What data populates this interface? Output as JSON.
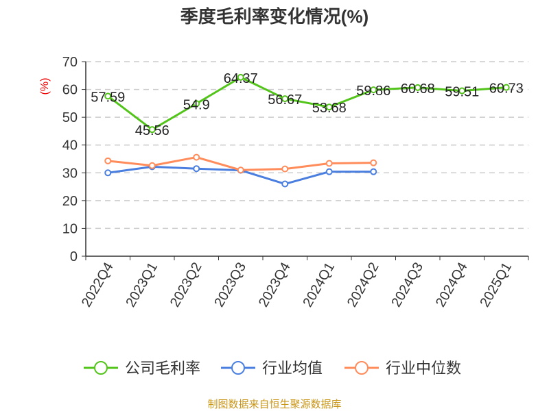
{
  "chart_data": {
    "type": "line",
    "title": "季度毛利率变化情况(%)",
    "ylabel": "(%)",
    "ylim": [
      0,
      70
    ],
    "yticks": [
      0,
      10,
      20,
      30,
      40,
      50,
      60,
      70
    ],
    "grid": true,
    "legend_position": "bottom",
    "categories": [
      "2022Q4",
      "2023Q1",
      "2023Q2",
      "2023Q3",
      "2023Q4",
      "2024Q1",
      "2024Q2",
      "2024Q3",
      "2024Q4",
      "2025Q1"
    ],
    "series": [
      {
        "name": "公司毛利率",
        "color": "#52c41a",
        "values": [
          57.59,
          45.56,
          54.9,
          64.37,
          56.67,
          53.68,
          59.86,
          60.68,
          59.51,
          60.73
        ],
        "labels": [
          "57.59",
          "45.56",
          "54.9",
          "64.37",
          "56.67",
          "53.68",
          "59.86",
          "60.68",
          "59.51",
          "60.73"
        ]
      },
      {
        "name": "行业均值",
        "color": "#4a7fe0",
        "values": [
          30.0,
          32.2,
          31.5,
          30.9,
          26.0,
          30.4,
          30.4,
          null,
          null,
          null
        ]
      },
      {
        "name": "行业中位数",
        "color": "#ff8c5a",
        "values": [
          34.3,
          32.6,
          35.6,
          31.0,
          31.4,
          33.4,
          33.6,
          null,
          null,
          null
        ]
      }
    ]
  },
  "footer": {
    "source": "制图数据来自恒生聚源数据库"
  }
}
